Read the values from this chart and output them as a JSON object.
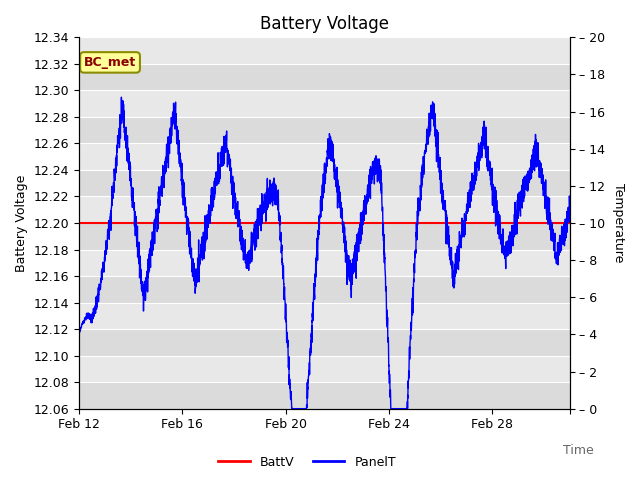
{
  "title": "Battery Voltage",
  "xlabel": "Time",
  "ylabel_left": "Battery Voltage",
  "ylabel_right": "Temperature",
  "legend_labels": [
    "BattV",
    "PanelT"
  ],
  "legend_colors": [
    "red",
    "blue"
  ],
  "annotation_text": "BC_met",
  "annotation_bg": "#FFFF99",
  "annotation_border": "#8B8B00",
  "batt_voltage": 12.2,
  "ylim_left": [
    12.06,
    12.34
  ],
  "ylim_right": [
    0,
    20
  ],
  "yticks_left": [
    12.06,
    12.08,
    12.1,
    12.12,
    12.14,
    12.16,
    12.18,
    12.2,
    12.22,
    12.24,
    12.26,
    12.28,
    12.3,
    12.32,
    12.34
  ],
  "yticks_right": [
    0,
    2,
    4,
    6,
    8,
    10,
    12,
    14,
    16,
    18,
    20
  ],
  "xtick_positions": [
    0,
    4,
    8,
    12,
    16,
    19
  ],
  "xtick_labels": [
    "Feb 12",
    "Feb 16",
    "Feb 20",
    "Feb 24",
    "Feb 28",
    ""
  ],
  "plot_bg_color": "#E8E8E8",
  "stripe_color": "#D0D0D0",
  "line_color_blue": "#0000FF",
  "line_color_red": "#FF0000",
  "grid_color": "#FFFFFF",
  "title_fontsize": 12,
  "axis_label_fontsize": 9,
  "tick_fontsize": 9
}
